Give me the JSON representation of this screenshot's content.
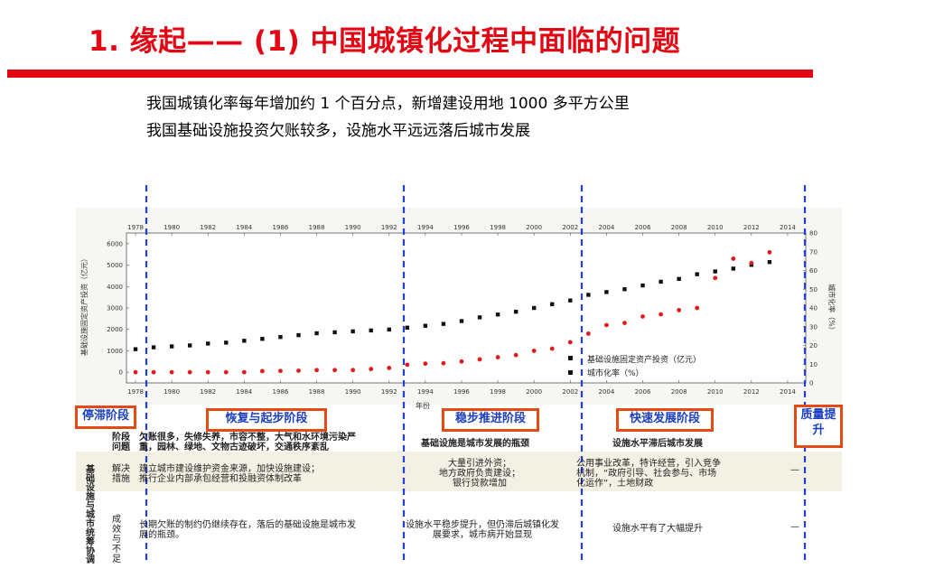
{
  "slide": {
    "title": "1. 缘起—— (1) 中国城镇化过程中面临的问题",
    "lines": [
      "我国城镇化率每年增加约 1 个百分点，新增建设用地 1000 多平方公里",
      "我国基础设施投资欠账较多，设施水平远远落后城市发展"
    ]
  },
  "chart_data": {
    "type": "scatter",
    "x_ticks": [
      "1978",
      "1980",
      "1982",
      "1984",
      "1986",
      "1988",
      "1990",
      "1992",
      "1994",
      "1996",
      "1998",
      "2000",
      "2002",
      "2004",
      "2006",
      "2008",
      "2010",
      "2012",
      "2014"
    ],
    "xlabel": "年份",
    "ylabel_left": "基础设施固定资产投资（亿元）",
    "ylabel_right": "城市化率（%）",
    "ylim_left": [
      -500,
      6500
    ],
    "yticks_left": [
      0,
      1000,
      2000,
      3000,
      4000,
      5000,
      6000
    ],
    "ylim_right": [
      0,
      80
    ],
    "yticks_right": [
      0,
      10,
      20,
      30,
      40,
      50,
      60,
      70,
      80
    ],
    "xlim": [
      1977.5,
      2015
    ],
    "legend_position": "lower-right-of-center",
    "series": [
      {
        "name": "基础设施固定资产投资（亿元）",
        "axis": "right",
        "color": "#111111",
        "marker": "square",
        "x": [
          1978,
          1979,
          1980,
          1981,
          1982,
          1983,
          1984,
          1985,
          1986,
          1987,
          1988,
          1989,
          1990,
          1991,
          1992,
          1993,
          1994,
          1995,
          1996,
          1997,
          1998,
          1999,
          2000,
          2001,
          2002,
          2003,
          2004,
          2005,
          2006,
          2007,
          2008,
          2009,
          2010,
          2011,
          2012,
          2013
        ],
        "values": [
          18,
          19,
          19.5,
          20,
          21,
          21.5,
          22.5,
          23.5,
          24.5,
          25.5,
          26.5,
          27,
          27.5,
          28,
          28.5,
          29.5,
          30.5,
          31.5,
          33,
          35,
          36.5,
          38,
          40,
          42,
          44,
          47,
          48.5,
          50,
          52,
          54,
          55.5,
          58,
          59.5,
          61,
          63,
          64.5
        ]
      },
      {
        "name": "城市化率（%）",
        "axis": "left",
        "color": "#e31a1c",
        "marker": "circle",
        "x": [
          1978,
          1979,
          1980,
          1981,
          1982,
          1983,
          1984,
          1985,
          1986,
          1987,
          1988,
          1989,
          1990,
          1991,
          1992,
          1993,
          1994,
          1995,
          1996,
          1997,
          1998,
          1999,
          2000,
          2001,
          2002,
          2003,
          2004,
          2005,
          2006,
          2007,
          2008,
          2009,
          2010,
          2011,
          2012,
          2013
        ],
        "values": [
          0,
          0,
          0,
          0,
          0,
          0,
          0,
          50,
          60,
          70,
          100,
          100,
          100,
          150,
          200,
          350,
          400,
          420,
          500,
          600,
          700,
          800,
          1000,
          1100,
          1400,
          1800,
          2200,
          2300,
          2600,
          2700,
          2900,
          3000,
          4400,
          5300,
          5100,
          5600
        ]
      }
    ]
  },
  "stages": [
    "停滞阶段",
    "恢复与起步阶段",
    "稳步推进阶段",
    "快速发展阶段",
    "质量提升"
  ],
  "row_head": {
    "main": "基础设施与城市统筹协调",
    "r1": "阶段问题",
    "r2": "解决措施",
    "r3": "成效与不足"
  },
  "table": {
    "r1_c1a": "欠账很多，失修失养，市容不整，大气和水环境污染严",
    "r1_c1b": "重，园林、绿地、文物古迹破坏，交通秩序紊乱",
    "r1_c2": "基础设施是城市发展的瓶颈",
    "r1_c3": "设施水平滞后城市发展",
    "r2_c1a": "建立城市建设维护资金来源，加快设施建设；",
    "r2_c1b": "推行企业内部承包经营和投融资体制改革",
    "r2_c2a": "大量引进外资；",
    "r2_c2b": "地方政府负责建设；",
    "r2_c2c": "银行贷款增加",
    "r2_c3a": "公用事业改革，特许经营，引入竞争",
    "r2_c3b": "机制，“政府引导、社会参与、市场",
    "r2_c3c": "化运作”，土地财政",
    "r2_c4": "—",
    "r3_c1a": "长期欠账的制约仍继续存在，落后的基础设施是城市发",
    "r3_c1b": "展的瓶颈。",
    "r3_c2a": "设施水平稳步提升，但仍滞后城镇化发",
    "r3_c2b": "展要求，城市病开始显现",
    "r3_c3": "设施水平有了大幅提升",
    "r3_c4": "—"
  }
}
